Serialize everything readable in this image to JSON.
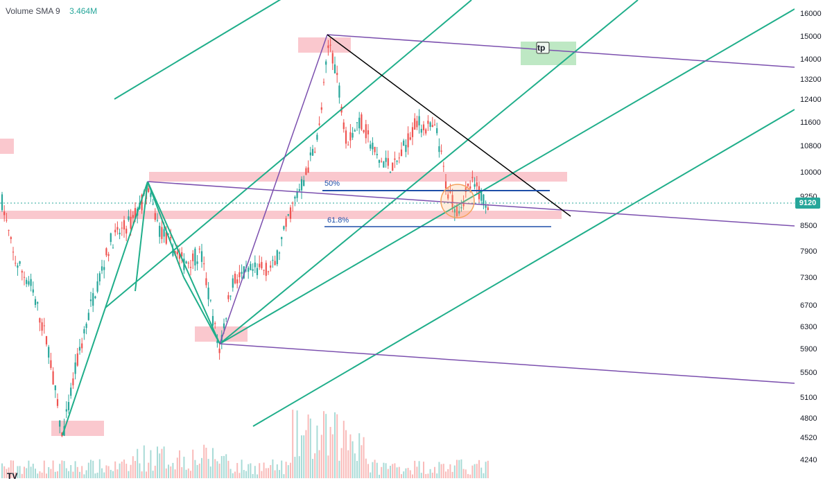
{
  "legend": {
    "label": "Volume SMA 9",
    "value": "3.464M"
  },
  "last_price": "9120",
  "price_ticks": [
    "16000",
    "15000",
    "14000",
    "13200",
    "12400",
    "11600",
    "10800",
    "10000",
    "9250",
    "8500",
    "7900",
    "7300",
    "6700",
    "6300",
    "5900",
    "5500",
    "5100",
    "4800",
    "4520",
    "4240"
  ],
  "annotations": {
    "fib_50": "50%",
    "fib_618": "61.8%",
    "tp_label": "tp"
  },
  "logo_text": "TV",
  "colors": {
    "up": "#26a69a",
    "down": "#ef5350",
    "pitchfork_green": "#1fae8a",
    "channel_purple": "#7b4fae",
    "fib_blue": "#1e4fa8",
    "zone_pink": "#f8b6bd",
    "zone_green": "#a8e0b0"
  },
  "chart_data": {
    "type": "candlestick",
    "title": "",
    "y_scale": "log",
    "ylim": [
      4100,
      16600
    ],
    "volume_sma_9": "3.464M",
    "last_price": 9120,
    "price_levels": {
      "fib_50": 9450,
      "fib_61_8": 8500
    },
    "swing_points": [
      {
        "label": "low",
        "price": 4520
      },
      {
        "label": "high",
        "price": 9650
      },
      {
        "label": "low",
        "price": 5980
      },
      {
        "label": "high",
        "price": 15100
      },
      {
        "label": "low",
        "price": 8800
      }
    ],
    "grid": false
  }
}
